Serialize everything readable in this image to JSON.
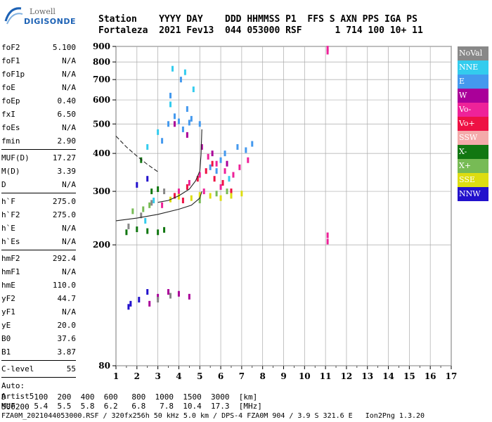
{
  "logo": {
    "line1": "Lowell",
    "line2": "DIGISONDE"
  },
  "header": {
    "labels": "Station    YYYY DAY    DDD HHMMSS P1  FFS S AXN PPS IGA PS",
    "values": "Fortaleza  2021 Fev13  044 053000 RSF      1 714 100 10+ 11"
  },
  "params": {
    "group1": [
      {
        "k": "foF2",
        "v": "5.100"
      },
      {
        "k": "foF1",
        "v": "N/A"
      },
      {
        "k": "foF1p",
        "v": "N/A"
      },
      {
        "k": "foE",
        "v": "N/A"
      },
      {
        "k": "foEp",
        "v": "0.40"
      },
      {
        "k": "fxI",
        "v": "6.50"
      },
      {
        "k": "foEs",
        "v": "N/A"
      },
      {
        "k": "fmin",
        "v": "2.90"
      }
    ],
    "group2": [
      {
        "k": "MUF(D)",
        "v": "17.27"
      },
      {
        "k": "M(D)",
        "v": "3.39"
      },
      {
        "k": "D",
        "v": "N/A"
      }
    ],
    "group3": [
      {
        "k": "h`F",
        "v": "275.0"
      },
      {
        "k": "h`F2",
        "v": "275.0"
      },
      {
        "k": "h`E",
        "v": "N/A"
      },
      {
        "k": "h`Es",
        "v": "N/A"
      }
    ],
    "group4": [
      {
        "k": "hmF2",
        "v": "292.4"
      },
      {
        "k": "hmF1",
        "v": "N/A"
      },
      {
        "k": "hmE",
        "v": "110.0"
      },
      {
        "k": "yF2",
        "v": "44.7"
      },
      {
        "k": "yF1",
        "v": "N/A"
      },
      {
        "k": "yE",
        "v": "20.0"
      },
      {
        "k": "B0",
        "v": "37.6"
      },
      {
        "k": "B1",
        "v": "3.87"
      }
    ],
    "group5": [
      {
        "k": "C-level",
        "v": "55"
      }
    ],
    "auto": [
      "Auto:",
      "Artist5",
      "500200"
    ]
  },
  "legend": [
    {
      "label": "NoVal",
      "color": "#888888"
    },
    {
      "label": "NNE",
      "color": "#33ccee"
    },
    {
      "label": "E",
      "color": "#4499ee"
    },
    {
      "label": "W",
      "color": "#aa0099"
    },
    {
      "label": "Vo-",
      "color": "#ee2299"
    },
    {
      "label": "Vo+",
      "color": "#ee1144"
    },
    {
      "label": "SSW",
      "color": "#f4aaaa"
    },
    {
      "label": "X-",
      "color": "#117711"
    },
    {
      "label": "X+",
      "color": "#77bb55"
    },
    {
      "label": "SSE",
      "color": "#dddd11"
    },
    {
      "label": "NNW",
      "color": "#2211cc"
    }
  ],
  "bottom": {
    "line1": "D      100  200  400  600   800  1000  1500  3000  [km]",
    "line2": "MUF    5.4  5.5  5.8  6.2   6.8   7.8  10.4  17.3  [MHz]"
  },
  "footer": "FZA0M_2021044053000.RSF / 320fx256h 50 kHz 5.0 km / DPS-4 FZA0M 904 / 3.9 S 321.6 E   Ion2Png 1.3.20",
  "chart_data": {
    "type": "scatter",
    "title": "",
    "xlabel": "",
    "ylabel": "",
    "xlim": [
      1,
      17
    ],
    "ylim": [
      80,
      900
    ],
    "y_scale": "log",
    "xticks": [
      "1",
      "2",
      "3",
      "4",
      "5",
      "6",
      "7",
      "8",
      "9",
      "10",
      "11",
      "12",
      "13",
      "14",
      "15",
      "16",
      "17"
    ],
    "yticks": [
      "80",
      "200",
      "300",
      "400",
      "500",
      "600",
      "700",
      "800",
      "900"
    ],
    "grid": true,
    "legend_position": "right",
    "series": [
      {
        "name": "E",
        "points": [
          [
            3.5,
            500
          ],
          [
            4.0,
            510
          ],
          [
            4.5,
            505
          ],
          [
            5.0,
            500
          ],
          [
            4.2,
            480
          ],
          [
            3.8,
            530
          ],
          [
            4.6,
            520
          ],
          [
            6.2,
            400
          ],
          [
            6.8,
            420
          ],
          [
            7.2,
            410
          ],
          [
            7.5,
            430
          ],
          [
            6.0,
            380
          ],
          [
            5.5,
            360
          ],
          [
            3.6,
            620
          ],
          [
            4.1,
            700
          ],
          [
            4.4,
            560
          ],
          [
            3.2,
            440
          ],
          [
            5.8,
            350
          ]
        ]
      },
      {
        "name": "NNE",
        "points": [
          [
            3.7,
            760
          ],
          [
            4.3,
            740
          ],
          [
            2.5,
            420
          ],
          [
            3.0,
            470
          ],
          [
            4.7,
            650
          ],
          [
            2.4,
            240
          ],
          [
            2.8,
            280
          ],
          [
            3.6,
            580
          ],
          [
            6.4,
            330
          ]
        ]
      },
      {
        "name": "Vo-",
        "points": [
          [
            5.4,
            390
          ],
          [
            5.8,
            370
          ],
          [
            6.2,
            350
          ],
          [
            6.6,
            340
          ],
          [
            5.0,
            340
          ],
          [
            4.5,
            320
          ],
          [
            6.9,
            360
          ],
          [
            7.3,
            380
          ],
          [
            5.2,
            300
          ],
          [
            6.0,
            310
          ],
          [
            3.2,
            270
          ],
          [
            4.0,
            300
          ],
          [
            11.1,
            865
          ],
          [
            11.1,
            885
          ],
          [
            11.1,
            205
          ],
          [
            11.1,
            215
          ]
        ]
      },
      {
        "name": "Vo+",
        "points": [
          [
            4.4,
            310
          ],
          [
            4.9,
            330
          ],
          [
            5.3,
            350
          ],
          [
            5.7,
            330
          ],
          [
            6.1,
            320
          ],
          [
            6.5,
            300
          ],
          [
            3.8,
            290
          ],
          [
            4.2,
            280
          ],
          [
            5.6,
            370
          ]
        ]
      },
      {
        "name": "W",
        "points": [
          [
            3.0,
            135
          ],
          [
            3.5,
            140
          ],
          [
            4.0,
            138
          ],
          [
            4.5,
            135
          ],
          [
            2.6,
            128
          ],
          [
            3.8,
            500
          ],
          [
            4.4,
            460
          ],
          [
            5.1,
            420
          ],
          [
            5.6,
            400
          ],
          [
            6.3,
            370
          ]
        ]
      },
      {
        "name": "SSE",
        "points": [
          [
            5.0,
            292
          ],
          [
            5.5,
            290
          ],
          [
            6.0,
            285
          ],
          [
            6.5,
            290
          ],
          [
            7.0,
            295
          ],
          [
            4.6,
            285
          ],
          [
            3.6,
            282
          ],
          [
            4.0,
            288
          ]
        ]
      },
      {
        "name": "NNW",
        "points": [
          [
            1.7,
            128
          ],
          [
            2.1,
            132
          ],
          [
            2.5,
            140
          ],
          [
            2.0,
            315
          ],
          [
            2.5,
            330
          ],
          [
            1.6,
            125
          ]
        ]
      },
      {
        "name": "X-",
        "points": [
          [
            1.5,
            220
          ],
          [
            2.0,
            225
          ],
          [
            2.5,
            222
          ],
          [
            3.0,
            220
          ],
          [
            3.3,
            224
          ],
          [
            2.7,
            300
          ],
          [
            3.0,
            305
          ],
          [
            2.2,
            380
          ]
        ]
      },
      {
        "name": "X+",
        "points": [
          [
            1.8,
            258
          ],
          [
            2.3,
            262
          ],
          [
            2.6,
            270
          ],
          [
            5.0,
            280
          ],
          [
            5.8,
            295
          ],
          [
            6.3,
            300
          ]
        ]
      },
      {
        "name": "NoVal",
        "points": [
          [
            1.6,
            230
          ],
          [
            2.2,
            250
          ],
          [
            2.7,
            275
          ],
          [
            3.3,
            300
          ],
          [
            3.0,
            132
          ],
          [
            3.6,
            136
          ]
        ]
      }
    ],
    "traces": [
      {
        "name": "virtual height trace",
        "points": [
          [
            1.0,
            456
          ],
          [
            1.5,
            420
          ],
          [
            2.0,
            392
          ],
          [
            2.5,
            368
          ],
          [
            3.0,
            348
          ]
        ]
      },
      {
        "name": "true height profile",
        "points": [
          [
            1.0,
            240
          ],
          [
            2.0,
            245
          ],
          [
            3.0,
            252
          ],
          [
            4.0,
            262
          ],
          [
            4.6,
            270
          ],
          [
            5.0,
            285
          ],
          [
            5.1,
            300
          ]
        ]
      },
      {
        "name": "virtual height curve",
        "points": [
          [
            3.0,
            276
          ],
          [
            3.5,
            280
          ],
          [
            4.0,
            290
          ],
          [
            4.5,
            305
          ],
          [
            4.8,
            325
          ],
          [
            5.0,
            350
          ],
          [
            5.06,
            395
          ],
          [
            5.1,
            480
          ]
        ]
      }
    ]
  }
}
